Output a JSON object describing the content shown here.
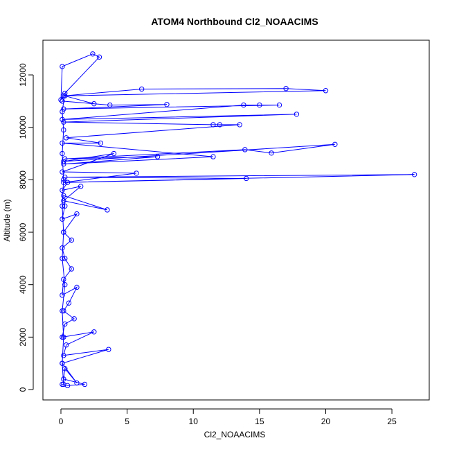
{
  "chart_data": {
    "type": "line",
    "title": "ATOM4 Northbound Cl2_NOAACIMS",
    "x_label": "Cl2_NOAACIMS",
    "y_label": "Altitude (m)",
    "color": "#0000ff",
    "marker": "circle",
    "xlim": [
      -1.36,
      27.82
    ],
    "ylim": [
      -396,
      13323
    ],
    "xticks": [
      0,
      5,
      10,
      15,
      20,
      25
    ],
    "yticks": [
      0,
      2000,
      4000,
      6000,
      8000,
      10000,
      12000
    ],
    "x": [
      0.1,
      0.5,
      1.8,
      0.2,
      0.3,
      1.2,
      0.1,
      3.6,
      0.2,
      0.4,
      2.5,
      0.1,
      0.3,
      1.0,
      0.2,
      0.6,
      1.2,
      0.1,
      0.2,
      0.8,
      0.3,
      0.1,
      0.8,
      0.2,
      1.2,
      0.1,
      0.3,
      0.2,
      3.5,
      0.2,
      1.5,
      0.1,
      0.5,
      14.0,
      0.3,
      26.7,
      0.2,
      5.7,
      0.1,
      4.0,
      0.2,
      20.7,
      15.9,
      13.9,
      0.3,
      7.3,
      0.2,
      11.5,
      0.1,
      3.0,
      0.4,
      13.5,
      12.0,
      11.5,
      0.2,
      17.8,
      0.1,
      13.8,
      15.0,
      16.5,
      0.2,
      8.0,
      3.7,
      0.1,
      2.5,
      0.3,
      20.0,
      17.0,
      6.1,
      0.2,
      0.0,
      0.1,
      2.4,
      2.9,
      0.3,
      0.1,
      0.2,
      0.1,
      0.2,
      0.1,
      0.2,
      0.1,
      0.3,
      0.1,
      0.2,
      0.1,
      0.2
    ],
    "y": [
      200,
      150,
      200,
      400,
      800,
      250,
      1000,
      1530,
      1300,
      1700,
      2200,
      2000,
      2500,
      2700,
      3000,
      3300,
      3900,
      3600,
      4200,
      4600,
      5000,
      5400,
      5700,
      6000,
      6700,
      6500,
      7000,
      7400,
      6850,
      7200,
      7750,
      7600,
      7900,
      8050,
      8100,
      8200,
      7900,
      8250,
      8300,
      9000,
      8700,
      9350,
      9020,
      9150,
      8800,
      8880,
      8600,
      8880,
      9400,
      9400,
      9600,
      10100,
      10100,
      10100,
      10200,
      10500,
      10300,
      10850,
      10850,
      10850,
      10700,
      10870,
      10850,
      11000,
      10900,
      11200,
      11400,
      11480,
      11460,
      11200,
      11050,
      12320,
      12800,
      12680,
      11300,
      10600,
      9900,
      9000,
      8000,
      7000,
      6000,
      5000,
      4000,
      3000,
      2000,
      1000,
      200
    ]
  }
}
